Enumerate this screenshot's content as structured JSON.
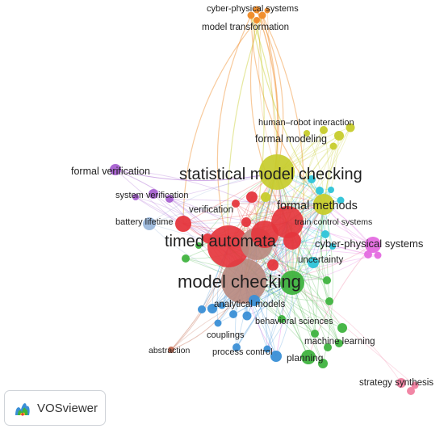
{
  "app": {
    "logo_text": "VOSviewer"
  },
  "labels": {
    "cps_top": "cyber-physical systems",
    "model_transformation": "model transformation",
    "human_robot": "human–robot interaction",
    "formal_modeling": "formal modeling",
    "formal_verification": "formal verification",
    "smc": "statistical model checking",
    "system_verification": "system verification",
    "formal_methods": "formal methods",
    "verification": "verification",
    "battery_lifetime": "battery lifetime",
    "train_control": "train control systems",
    "timed_automata": "timed automata",
    "cps_right": "cyber-physical systems",
    "uncertainty": "uncertainty",
    "model_checking": "model checking",
    "analytical_models": "analytical models",
    "behavioral_sciences": "behavioral sciences",
    "couplings": "couplings",
    "machine_learning": "machine learning",
    "abstraction": "abstraction",
    "process_control": "process control",
    "planning": "planning",
    "strategy_synthesis": "strategy synthesis"
  },
  "colors": {
    "red": "#e5363d",
    "brown": "#b98a80",
    "green": "#3fb33f",
    "blue": "#3a8fd6",
    "olive": "#c7cc2c",
    "cyan": "#2dc4d8",
    "purple": "#a660d0",
    "orange": "#f08a24",
    "pink": "#f07fa0",
    "magenta": "#e46be0",
    "lightblue": "#9bb8dc",
    "rust": "#c26a50"
  }
}
